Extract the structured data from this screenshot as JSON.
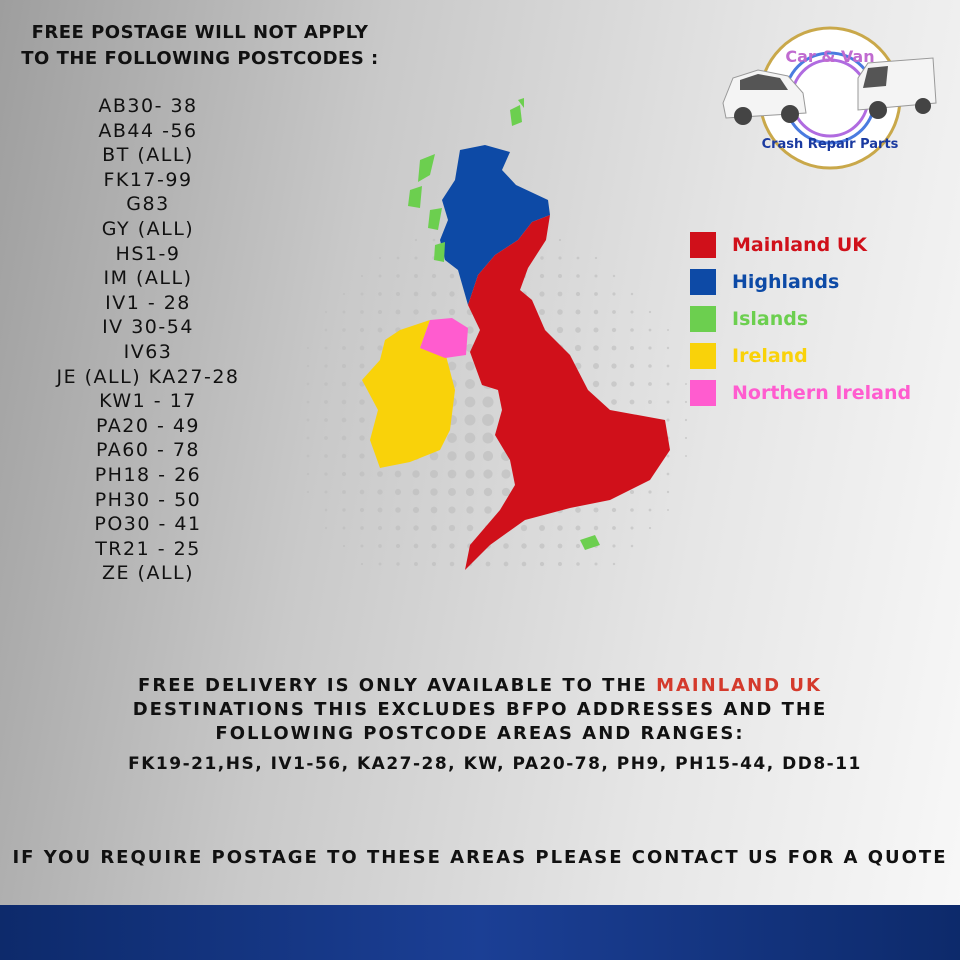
{
  "heading": {
    "line1": "FREE POSTAGE WILL NOT APPLY",
    "line2": "TO THE FOLLOWING POSTCODES :"
  },
  "postcodes": [
    "AB30- 38",
    "AB44 -56",
    "BT  (ALL)",
    "FK17-99",
    "G83",
    "GY (ALL)",
    "HS1-9",
    "IM  (ALL)",
    "IV1 - 28",
    "IV 30-54",
    "IV63",
    "JE (ALL) KA27-28",
    "KW1 - 17",
    "PA20 - 49",
    "PA60 - 78",
    "PH18 - 26",
    "PH30 - 50",
    "PO30 - 41",
    "TR21 - 25",
    "ZE (ALL)"
  ],
  "logo": {
    "top_text": "Car & Van",
    "bottom_text": "Crash Repair Parts"
  },
  "legend": [
    {
      "label": "Mainland UK",
      "color": "#d0101a"
    },
    {
      "label": "Highlands",
      "color": "#0d4aa6"
    },
    {
      "label": "Islands",
      "color": "#6ccf4f"
    },
    {
      "label": "Ireland",
      "color": "#f9d20a"
    },
    {
      "label": "Northern Ireland",
      "color": "#ff5ccf"
    }
  ],
  "notice": {
    "line1_prefix": "FREE DELIVERY IS ONLY AVAILABLE TO THE ",
    "line1_accent": "MAINLAND UK",
    "line2": "DESTINATIONS THIS EXCLUDES BFPO ADDRESSES AND THE",
    "line3": "FOLLOWING POSTCODE AREAS AND RANGES:",
    "ranges": "FK19-21,HS, IV1-56, KA27-28, KW, PA20-78, PH9, PH15-44, DD8-11"
  },
  "contact": "IF YOU REQUIRE POSTAGE TO THESE AREAS PLEASE CONTACT US FOR A QUOTE"
}
